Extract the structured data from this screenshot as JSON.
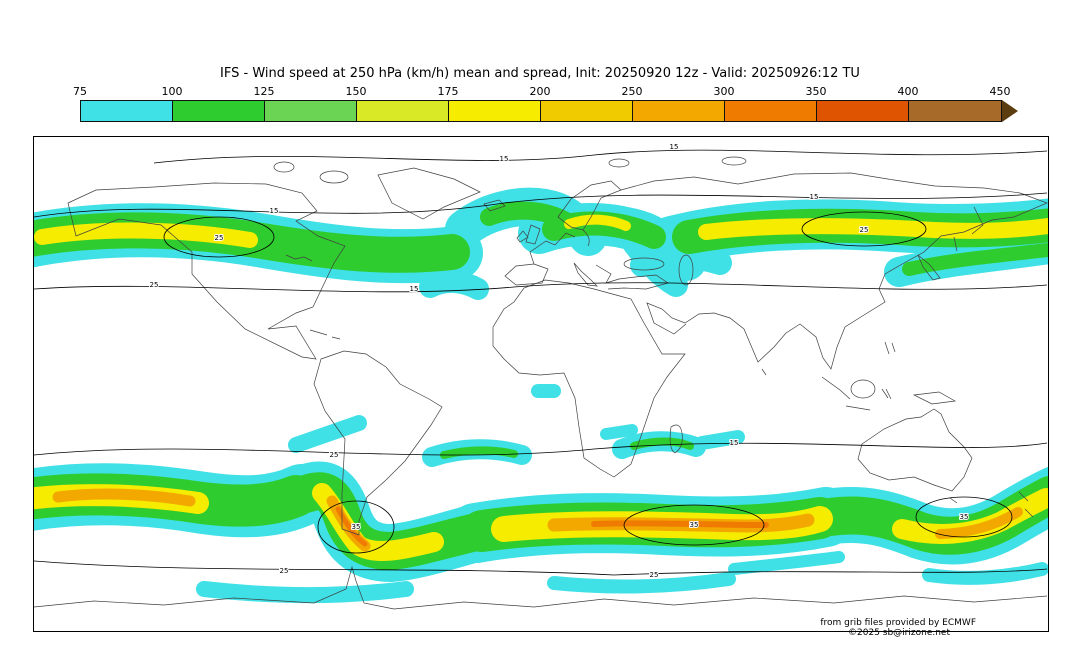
{
  "header": {
    "title": "IFS - Wind speed at 250 hPa (km/h) mean and spread, Init: 20250920 12z - Valid: 20250926:12 TU"
  },
  "colorbar": {
    "units": "km/h",
    "ticks": [
      "75",
      "100",
      "125",
      "150",
      "175",
      "200",
      "250",
      "300",
      "350",
      "400",
      "450"
    ],
    "segments": [
      "#3FE0E6",
      "#2FCC2F",
      "#6BD455",
      "#D9E926",
      "#F5EC00",
      "#EFCB00",
      "#F3A800",
      "#EF7C00",
      "#DE5400",
      "#A86A28"
    ],
    "arrow_color": "#5C3D10"
  },
  "map": {
    "contour_labels": [
      "15",
      "25",
      "35"
    ],
    "credits": {
      "line1": "from grib files provided by ECMWF",
      "line2": "©2025 sb@irizone.net"
    }
  }
}
